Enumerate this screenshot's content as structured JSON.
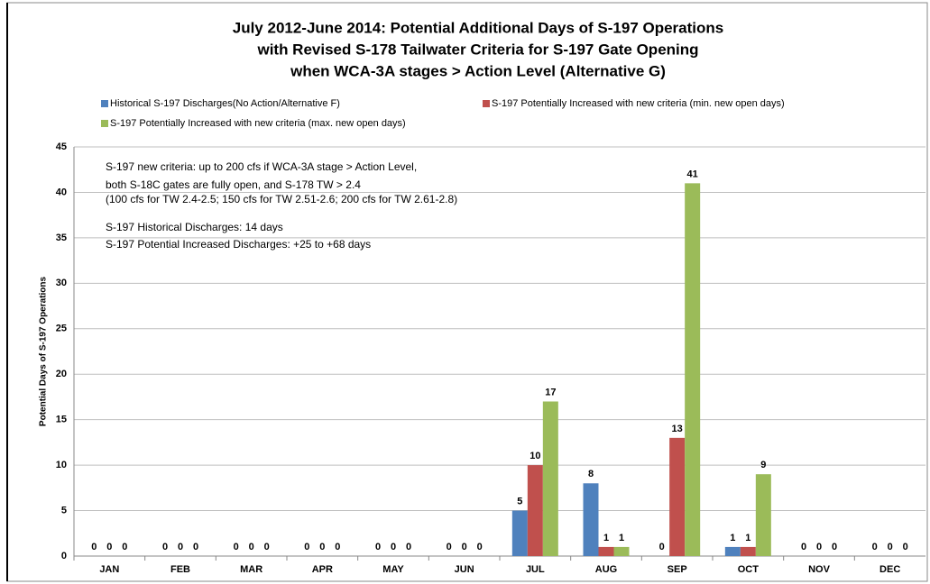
{
  "chart_data": {
    "type": "bar",
    "title": [
      "July 2012-June 2014: Potential Additional  Days of S-197 Operations",
      "with Revised S-178 Tailwater Criteria for S-197 Gate Opening",
      "when WCA-3A stages > Action Level (Alternative G)"
    ],
    "y_label": "Potential Days of S-197 Operations",
    "annotations": [
      "S-197 new criteria: up to 200 cfs if WCA-3A stage > Action Level,",
      "both S-18C gates are fully open, and S-178 TW > 2.4",
      "(100 cfs for TW 2.4-2.5; 150 cfs for TW 2.51-2.6; 200 cfs for TW 2.61-2.8)",
      "S-197 Historical Discharges: 14  days",
      "S-197 Potential Increased Discharges: +25 to +68 days"
    ],
    "categories": [
      "JAN",
      "FEB",
      "MAR",
      "APR",
      "MAY",
      "JUN",
      "JUL",
      "AUG",
      "SEP",
      "OCT",
      "NOV",
      "DEC"
    ],
    "series": [
      {
        "name": "Historical S-197 Discharges(No Action/Alternative F)",
        "color": "#4f81bd",
        "values": [
          0,
          0,
          0,
          0,
          0,
          0,
          5,
          8,
          0,
          1,
          0,
          0
        ]
      },
      {
        "name": "S-197 Potentially Increased with new criteria (min. new open days)",
        "color": "#c0504d",
        "values": [
          0,
          0,
          0,
          0,
          0,
          0,
          10,
          1,
          13,
          1,
          0,
          0
        ]
      },
      {
        "name": "S-197 Potentially Increased with new criteria (max. new open days)",
        "color": "#9bbb59",
        "values": [
          0,
          0,
          0,
          0,
          0,
          0,
          17,
          1,
          41,
          9,
          0,
          0
        ]
      }
    ],
    "ylim": [
      0,
      45
    ],
    "yticks": [
      0,
      5,
      10,
      15,
      20,
      25,
      30,
      35,
      40,
      45
    ],
    "grid": true,
    "legend": "top"
  }
}
